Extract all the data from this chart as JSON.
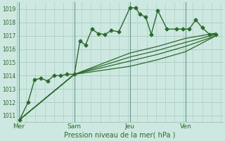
{
  "bg_color": "#cce8e0",
  "grid_color": "#a8ccbe",
  "line_color": "#2d6a2d",
  "text_color": "#2d6a2d",
  "xlabel": "Pression niveau de la mer( hPa )",
  "ylim": [
    1010.5,
    1019.5
  ],
  "yticks": [
    1011,
    1012,
    1013,
    1014,
    1015,
    1016,
    1017,
    1018,
    1019
  ],
  "xtick_labels": [
    "Mer",
    "Sam",
    "Jeu",
    "Ven"
  ],
  "xtick_positions": [
    0,
    3,
    6,
    9
  ],
  "vline_positions": [
    0,
    3,
    6,
    9
  ],
  "xlim": [
    -0.1,
    11.0
  ],
  "series": [
    {
      "x": [
        0.05,
        0.5,
        0.85,
        1.2,
        1.55,
        1.9,
        2.25,
        2.6,
        3.0,
        3.3,
        3.6,
        3.95,
        4.3,
        4.65,
        5.0,
        5.4,
        6.0,
        6.3,
        6.55,
        6.85,
        7.15,
        7.5,
        8.0,
        8.5,
        8.85,
        9.2,
        9.55,
        9.9,
        10.3,
        10.65
      ],
      "y": [
        1010.7,
        1012.0,
        1013.7,
        1013.8,
        1013.6,
        1014.0,
        1014.0,
        1014.1,
        1014.1,
        1016.6,
        1016.3,
        1017.5,
        1017.15,
        1017.1,
        1017.4,
        1017.3,
        1019.1,
        1019.1,
        1018.6,
        1018.4,
        1017.1,
        1018.9,
        1017.5,
        1017.5,
        1017.5,
        1017.5,
        1018.2,
        1017.6,
        1017.1,
        1017.1
      ],
      "marker": "D",
      "markersize": 2.5,
      "linewidth": 1.0
    },
    {
      "x": [
        0.05,
        3.0,
        6.0,
        7.5,
        9.0,
        10.65
      ],
      "y": [
        1010.7,
        1014.1,
        1015.7,
        1016.2,
        1016.8,
        1017.2
      ],
      "marker": null,
      "linewidth": 0.9
    },
    {
      "x": [
        0.05,
        3.0,
        6.0,
        7.5,
        9.0,
        10.65
      ],
      "y": [
        1010.7,
        1014.1,
        1015.4,
        1015.9,
        1016.5,
        1017.1
      ],
      "marker": null,
      "linewidth": 0.9
    },
    {
      "x": [
        0.05,
        3.0,
        6.0,
        7.5,
        9.0,
        10.65
      ],
      "y": [
        1010.7,
        1014.1,
        1015.1,
        1015.6,
        1016.2,
        1017.0
      ],
      "marker": null,
      "linewidth": 0.9
    },
    {
      "x": [
        0.05,
        3.0,
        6.0,
        7.5,
        9.0,
        10.65
      ],
      "y": [
        1010.7,
        1014.1,
        1014.7,
        1015.2,
        1015.8,
        1017.0
      ],
      "marker": null,
      "linewidth": 0.9
    }
  ]
}
